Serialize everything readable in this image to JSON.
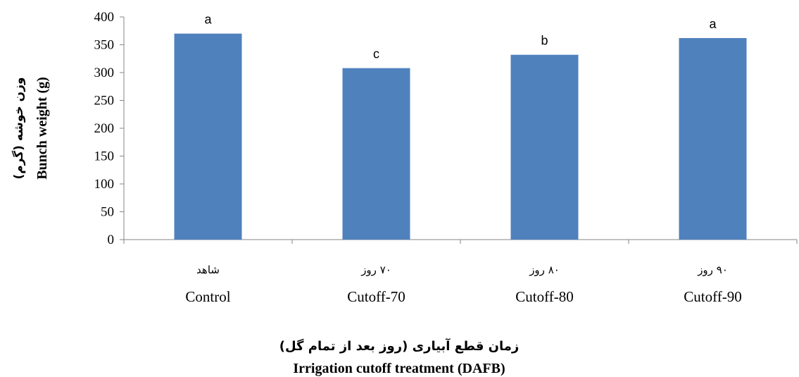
{
  "chart_data": {
    "type": "bar",
    "categories": [
      "Control",
      "Cutoff-70",
      "Cutoff-80",
      "Cutoff-90"
    ],
    "categories_fa": [
      "شاهد",
      "۷۰ روز",
      "۸۰ روز",
      "۹۰ روز"
    ],
    "values": [
      370,
      308,
      332,
      362
    ],
    "significance": [
      "a",
      "c",
      "b",
      "a"
    ],
    "ylim": [
      0,
      400
    ],
    "yticks": [
      0,
      50,
      100,
      150,
      200,
      250,
      300,
      350,
      400
    ],
    "ylabel_fa": "وزن خوشه (گرم)",
    "ylabel": "Bunch weight (g)",
    "xlabel_fa": "زمان قطع آبیاری (روز بعد از تمام گل)",
    "xlabel": "Irrigation cutoff treatment (DAFB)",
    "bar_color": "#4f81bd",
    "grid": false
  }
}
